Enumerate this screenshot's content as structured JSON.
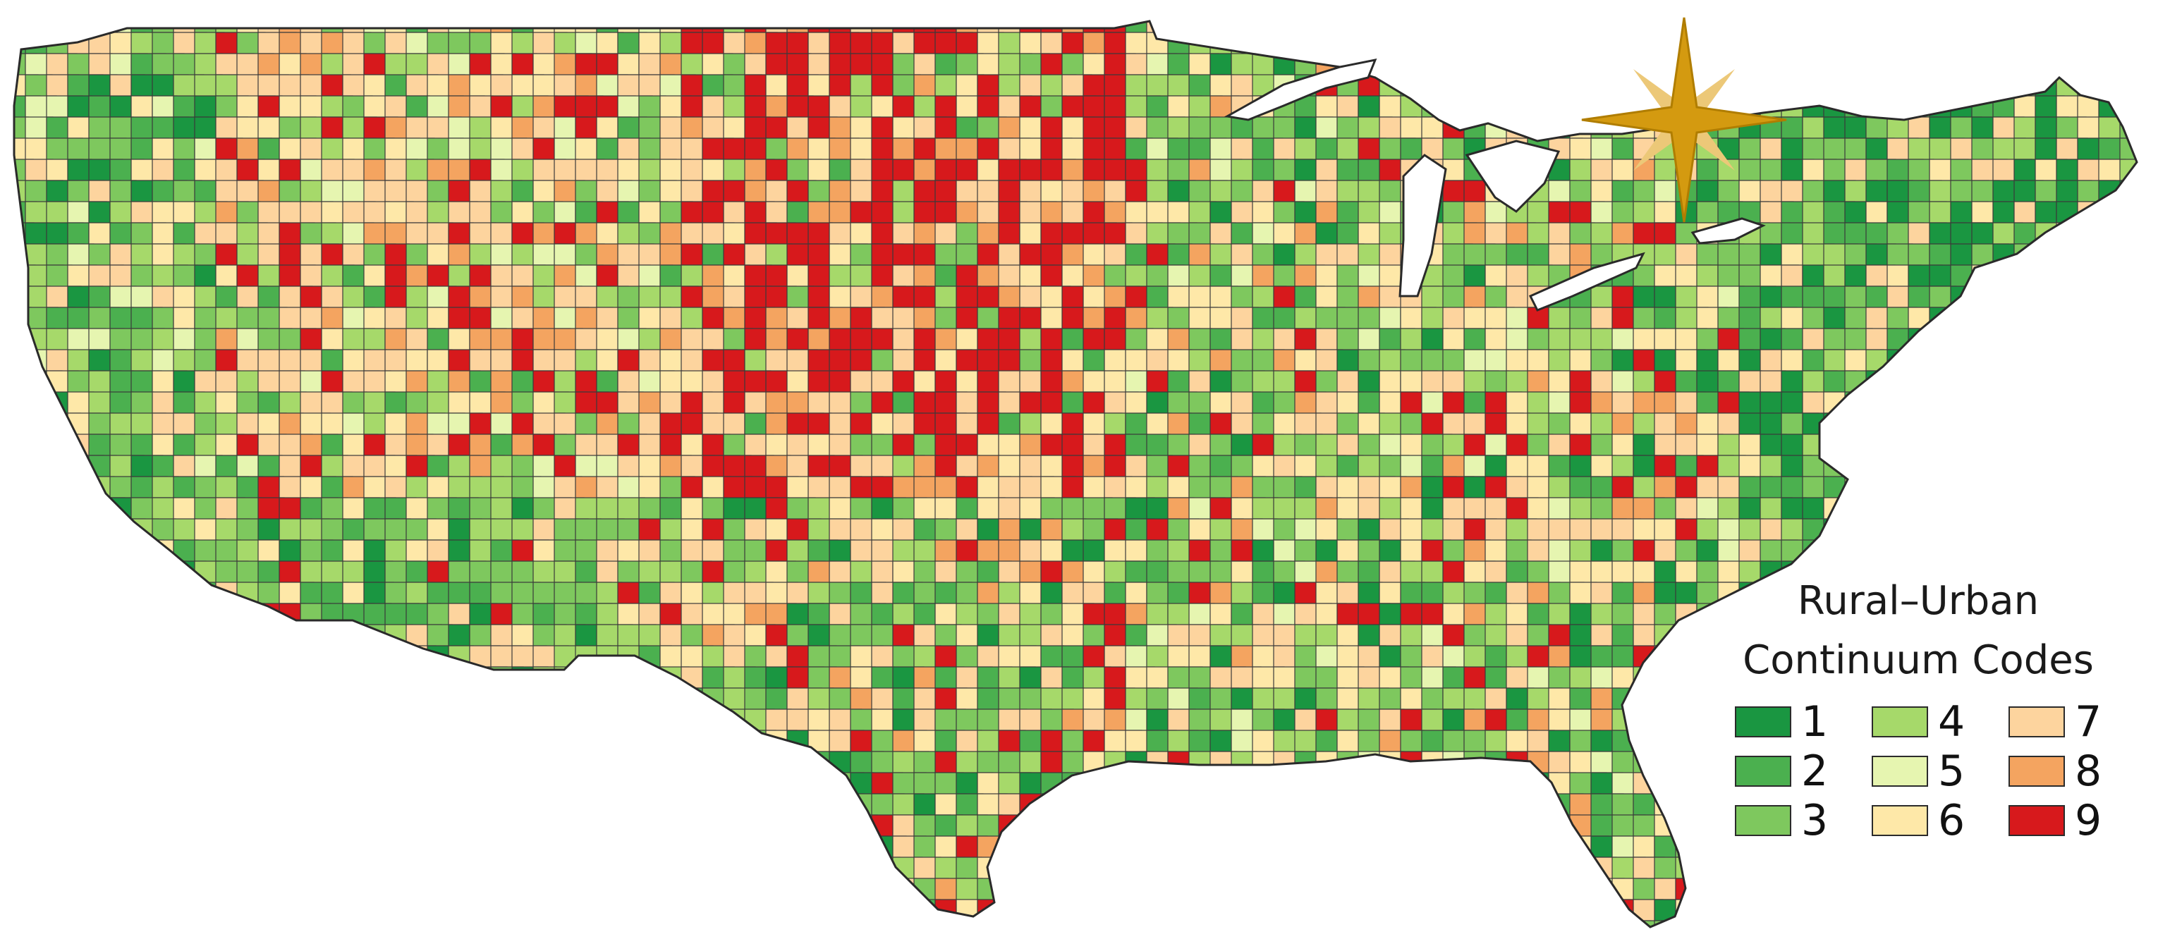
{
  "legend": {
    "title_line1": "Rural–Urban",
    "title_line2": "Continuum Codes",
    "items": [
      {
        "code": "1",
        "color": "#1a9641"
      },
      {
        "code": "4",
        "color": "#a6d96a"
      },
      {
        "code": "7",
        "color": "#fdd49e"
      },
      {
        "code": "2",
        "color": "#4bb04f"
      },
      {
        "code": "5",
        "color": "#e6f5b0"
      },
      {
        "code": "8",
        "color": "#f4a460"
      },
      {
        "code": "3",
        "color": "#7ec85e"
      },
      {
        "code": "6",
        "color": "#fee8a8"
      },
      {
        "code": "9",
        "color": "#d7191c"
      }
    ]
  },
  "compass": {
    "icon": "compass-rose-icon",
    "color": "#d49a10",
    "light_color": "#ecc878"
  },
  "map": {
    "region": "Contiguous United States counties",
    "lake_color": "#ffffff"
  }
}
